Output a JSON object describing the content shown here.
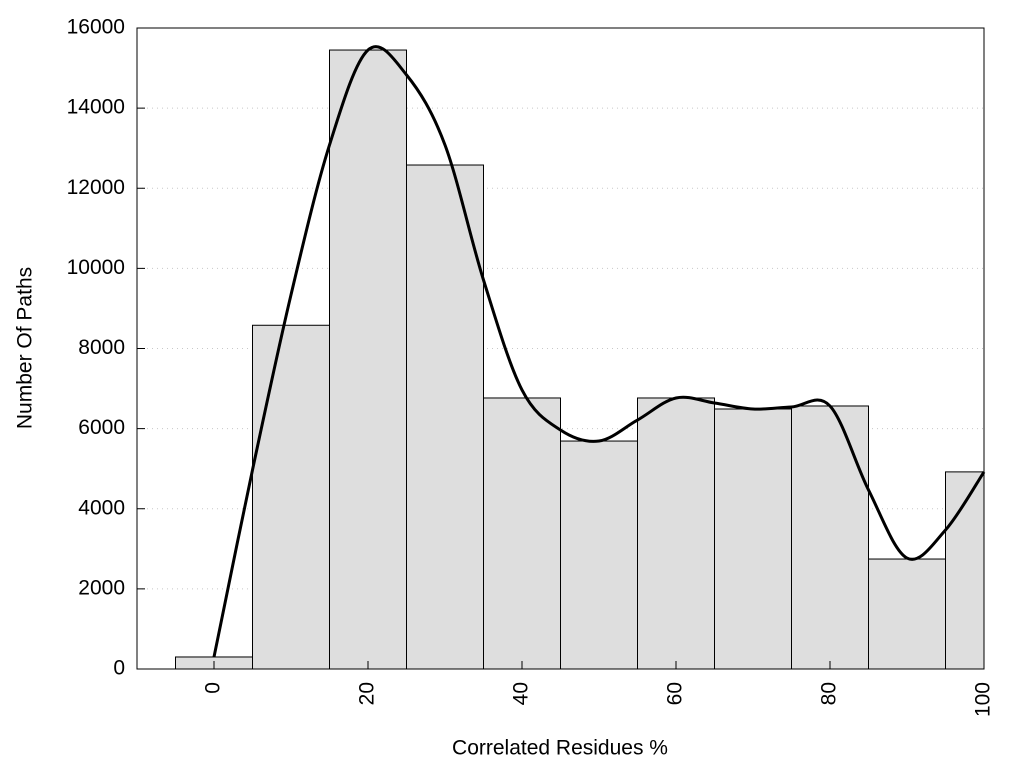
{
  "chart_data": {
    "type": "histogram",
    "x_label": "Correlated Residues %",
    "y_label": "Number Of Paths",
    "bins": [
      -5,
      5,
      15,
      25,
      35,
      45,
      55,
      65,
      75,
      85,
      95,
      100
    ],
    "values": [
      300,
      8580,
      15450,
      12580,
      6765,
      5690,
      6765,
      6490,
      6565,
      2745,
      4920
    ],
    "color": "#dedede",
    "edge_color": "#000000",
    "curve": {
      "color": "#000000",
      "x": [
        0,
        5,
        10,
        15,
        20,
        25,
        30,
        35,
        40,
        45,
        50,
        55,
        60,
        65,
        70,
        75,
        80,
        85,
        90,
        95,
        100
      ],
      "values": [
        300,
        4970,
        9340,
        13080,
        15450,
        14830,
        13080,
        9710,
        6965,
        5965,
        5690,
        6215,
        6765,
        6640,
        6490,
        6540,
        6565,
        4470,
        2770,
        3470,
        4920
      ]
    },
    "xlim": [
      -10,
      100
    ],
    "ylim": [
      0,
      16000
    ],
    "xticks": [
      0,
      20,
      40,
      60,
      80,
      100
    ],
    "yticks": [
      0,
      2000,
      4000,
      6000,
      8000,
      10000,
      12000,
      14000,
      16000
    ],
    "grid": true
  }
}
